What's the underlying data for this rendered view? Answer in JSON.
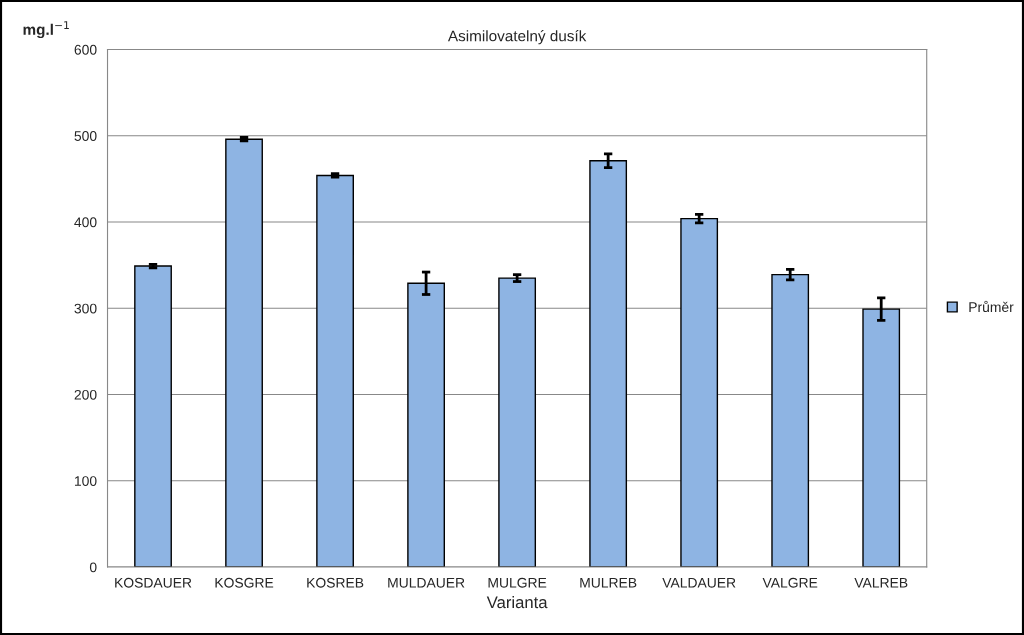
{
  "chart_data": {
    "type": "bar",
    "title": "Asimilovatelný dusík",
    "xlabel": "Varianta",
    "ylabel": "mg.l$^{−1}$",
    "categories": [
      "KOSDAUER",
      "KOSGRE",
      "KOSREB",
      "MULDAUER",
      "MULGRE",
      "MULREB",
      "VALDAUER",
      "VALGRE",
      "VALREB"
    ],
    "series": [
      {
        "name": "Průměr",
        "color": "#8eb4e3",
        "values": [
          349,
          496,
          454,
          329,
          335,
          471,
          404,
          339,
          299
        ],
        "errors": [
          2,
          2,
          2,
          13,
          4,
          8,
          5,
          6,
          13
        ]
      }
    ],
    "ylim": [
      0,
      600
    ],
    "yticks": [
      0,
      100,
      200,
      300,
      400,
      500,
      600
    ],
    "grid": "y",
    "legend": "right"
  }
}
